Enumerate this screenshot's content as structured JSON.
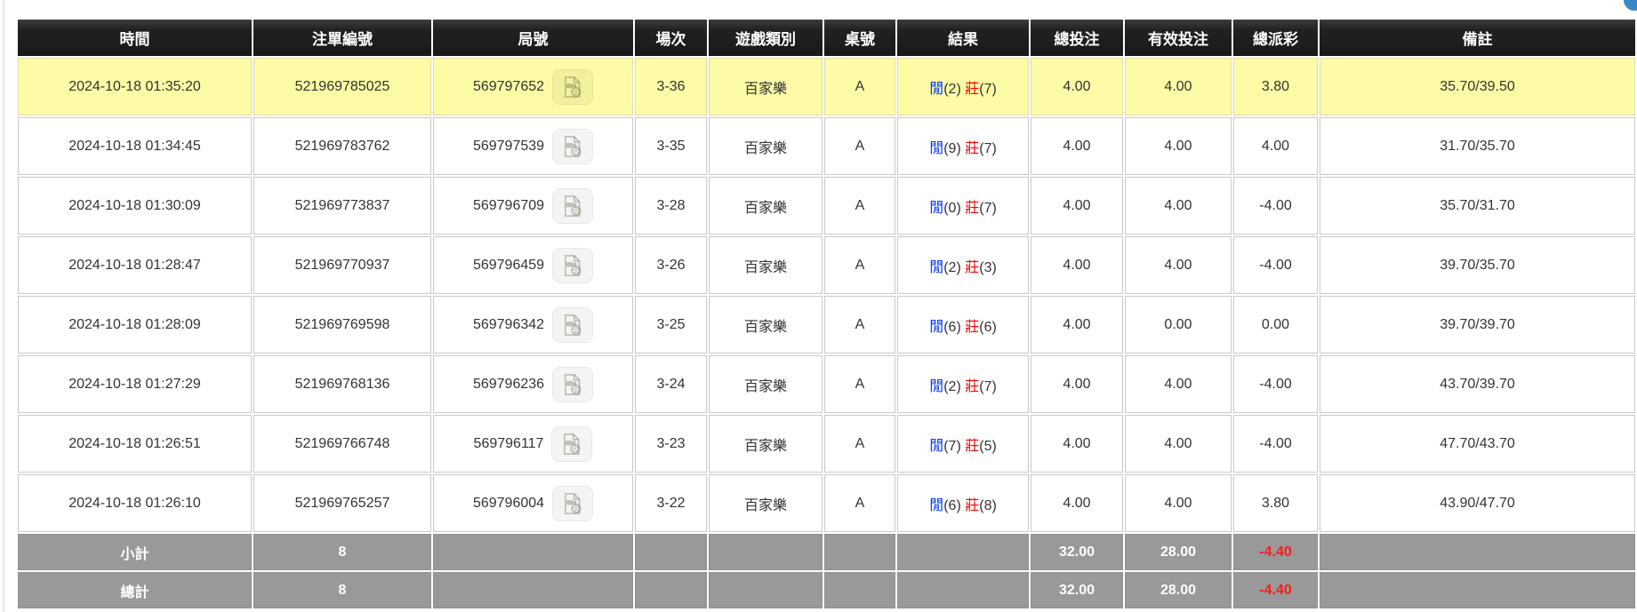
{
  "colors": {
    "header_bg": "#1f1f1f",
    "header_text": "#ffffff",
    "highlight_row_yellow": "#fdfba5",
    "summary_row_gray": "#999999",
    "player_blue": "#0033ff",
    "amount_blue": "#0066ff",
    "loss_red": "#ff0000",
    "grid_line": "#c9c9c9",
    "corner_button_blue": "#3a87c8"
  },
  "corner_button": {
    "name": "top-right-button-fragment"
  },
  "table": {
    "headers": [
      "時間",
      "注單編號",
      "局號",
      "場次",
      "遊戲類別",
      "桌號",
      "結果",
      "總投注",
      "有效投注",
      "總派彩",
      "備註"
    ],
    "result_labels": {
      "player": "閒",
      "banker": "莊"
    },
    "round_icon": "video-replay-icon",
    "rows": [
      {
        "time": "2024-10-18 01:35:20",
        "bet_no": "521969785025",
        "round_no": "569797652",
        "session": "3-36",
        "game_type": "百家樂",
        "table_no": "A",
        "player_score": "2",
        "banker_score": "7",
        "total_bet": "4.00",
        "valid_bet": "4.00",
        "payout": "3.80",
        "remark": "35.70/39.50",
        "highlighted": true
      },
      {
        "time": "2024-10-18 01:34:45",
        "bet_no": "521969783762",
        "round_no": "569797539",
        "session": "3-35",
        "game_type": "百家樂",
        "table_no": "A",
        "player_score": "9",
        "banker_score": "7",
        "total_bet": "4.00",
        "valid_bet": "4.00",
        "payout": "4.00",
        "remark": "31.70/35.70",
        "highlighted": false
      },
      {
        "time": "2024-10-18 01:30:09",
        "bet_no": "521969773837",
        "round_no": "569796709",
        "session": "3-28",
        "game_type": "百家樂",
        "table_no": "A",
        "player_score": "0",
        "banker_score": "7",
        "total_bet": "4.00",
        "valid_bet": "4.00",
        "payout": "-4.00",
        "remark": "35.70/31.70",
        "highlighted": false
      },
      {
        "time": "2024-10-18 01:28:47",
        "bet_no": "521969770937",
        "round_no": "569796459",
        "session": "3-26",
        "game_type": "百家樂",
        "table_no": "A",
        "player_score": "2",
        "banker_score": "3",
        "total_bet": "4.00",
        "valid_bet": "4.00",
        "payout": "-4.00",
        "remark": "39.70/35.70",
        "highlighted": false
      },
      {
        "time": "2024-10-18 01:28:09",
        "bet_no": "521969769598",
        "round_no": "569796342",
        "session": "3-25",
        "game_type": "百家樂",
        "table_no": "A",
        "player_score": "6",
        "banker_score": "6",
        "total_bet": "4.00",
        "valid_bet": "0.00",
        "payout": "0.00",
        "remark": "39.70/39.70",
        "highlighted": false
      },
      {
        "time": "2024-10-18 01:27:29",
        "bet_no": "521969768136",
        "round_no": "569796236",
        "session": "3-24",
        "game_type": "百家樂",
        "table_no": "A",
        "player_score": "2",
        "banker_score": "7",
        "total_bet": "4.00",
        "valid_bet": "4.00",
        "payout": "-4.00",
        "remark": "43.70/39.70",
        "highlighted": false
      },
      {
        "time": "2024-10-18 01:26:51",
        "bet_no": "521969766748",
        "round_no": "569796117",
        "session": "3-23",
        "game_type": "百家樂",
        "table_no": "A",
        "player_score": "7",
        "banker_score": "5",
        "total_bet": "4.00",
        "valid_bet": "4.00",
        "payout": "-4.00",
        "remark": "47.70/43.70",
        "highlighted": false
      },
      {
        "time": "2024-10-18 01:26:10",
        "bet_no": "521969765257",
        "round_no": "569796004",
        "session": "3-22",
        "game_type": "百家樂",
        "table_no": "A",
        "player_score": "6",
        "banker_score": "8",
        "total_bet": "4.00",
        "valid_bet": "4.00",
        "payout": "3.80",
        "remark": "43.90/47.70",
        "highlighted": false
      }
    ],
    "subtotal": {
      "label": "小計",
      "count": "8",
      "total_bet": "32.00",
      "valid_bet": "28.00",
      "payout": "-4.40"
    },
    "total": {
      "label": "總計",
      "count": "8",
      "total_bet": "32.00",
      "valid_bet": "28.00",
      "payout": "-4.40"
    }
  }
}
